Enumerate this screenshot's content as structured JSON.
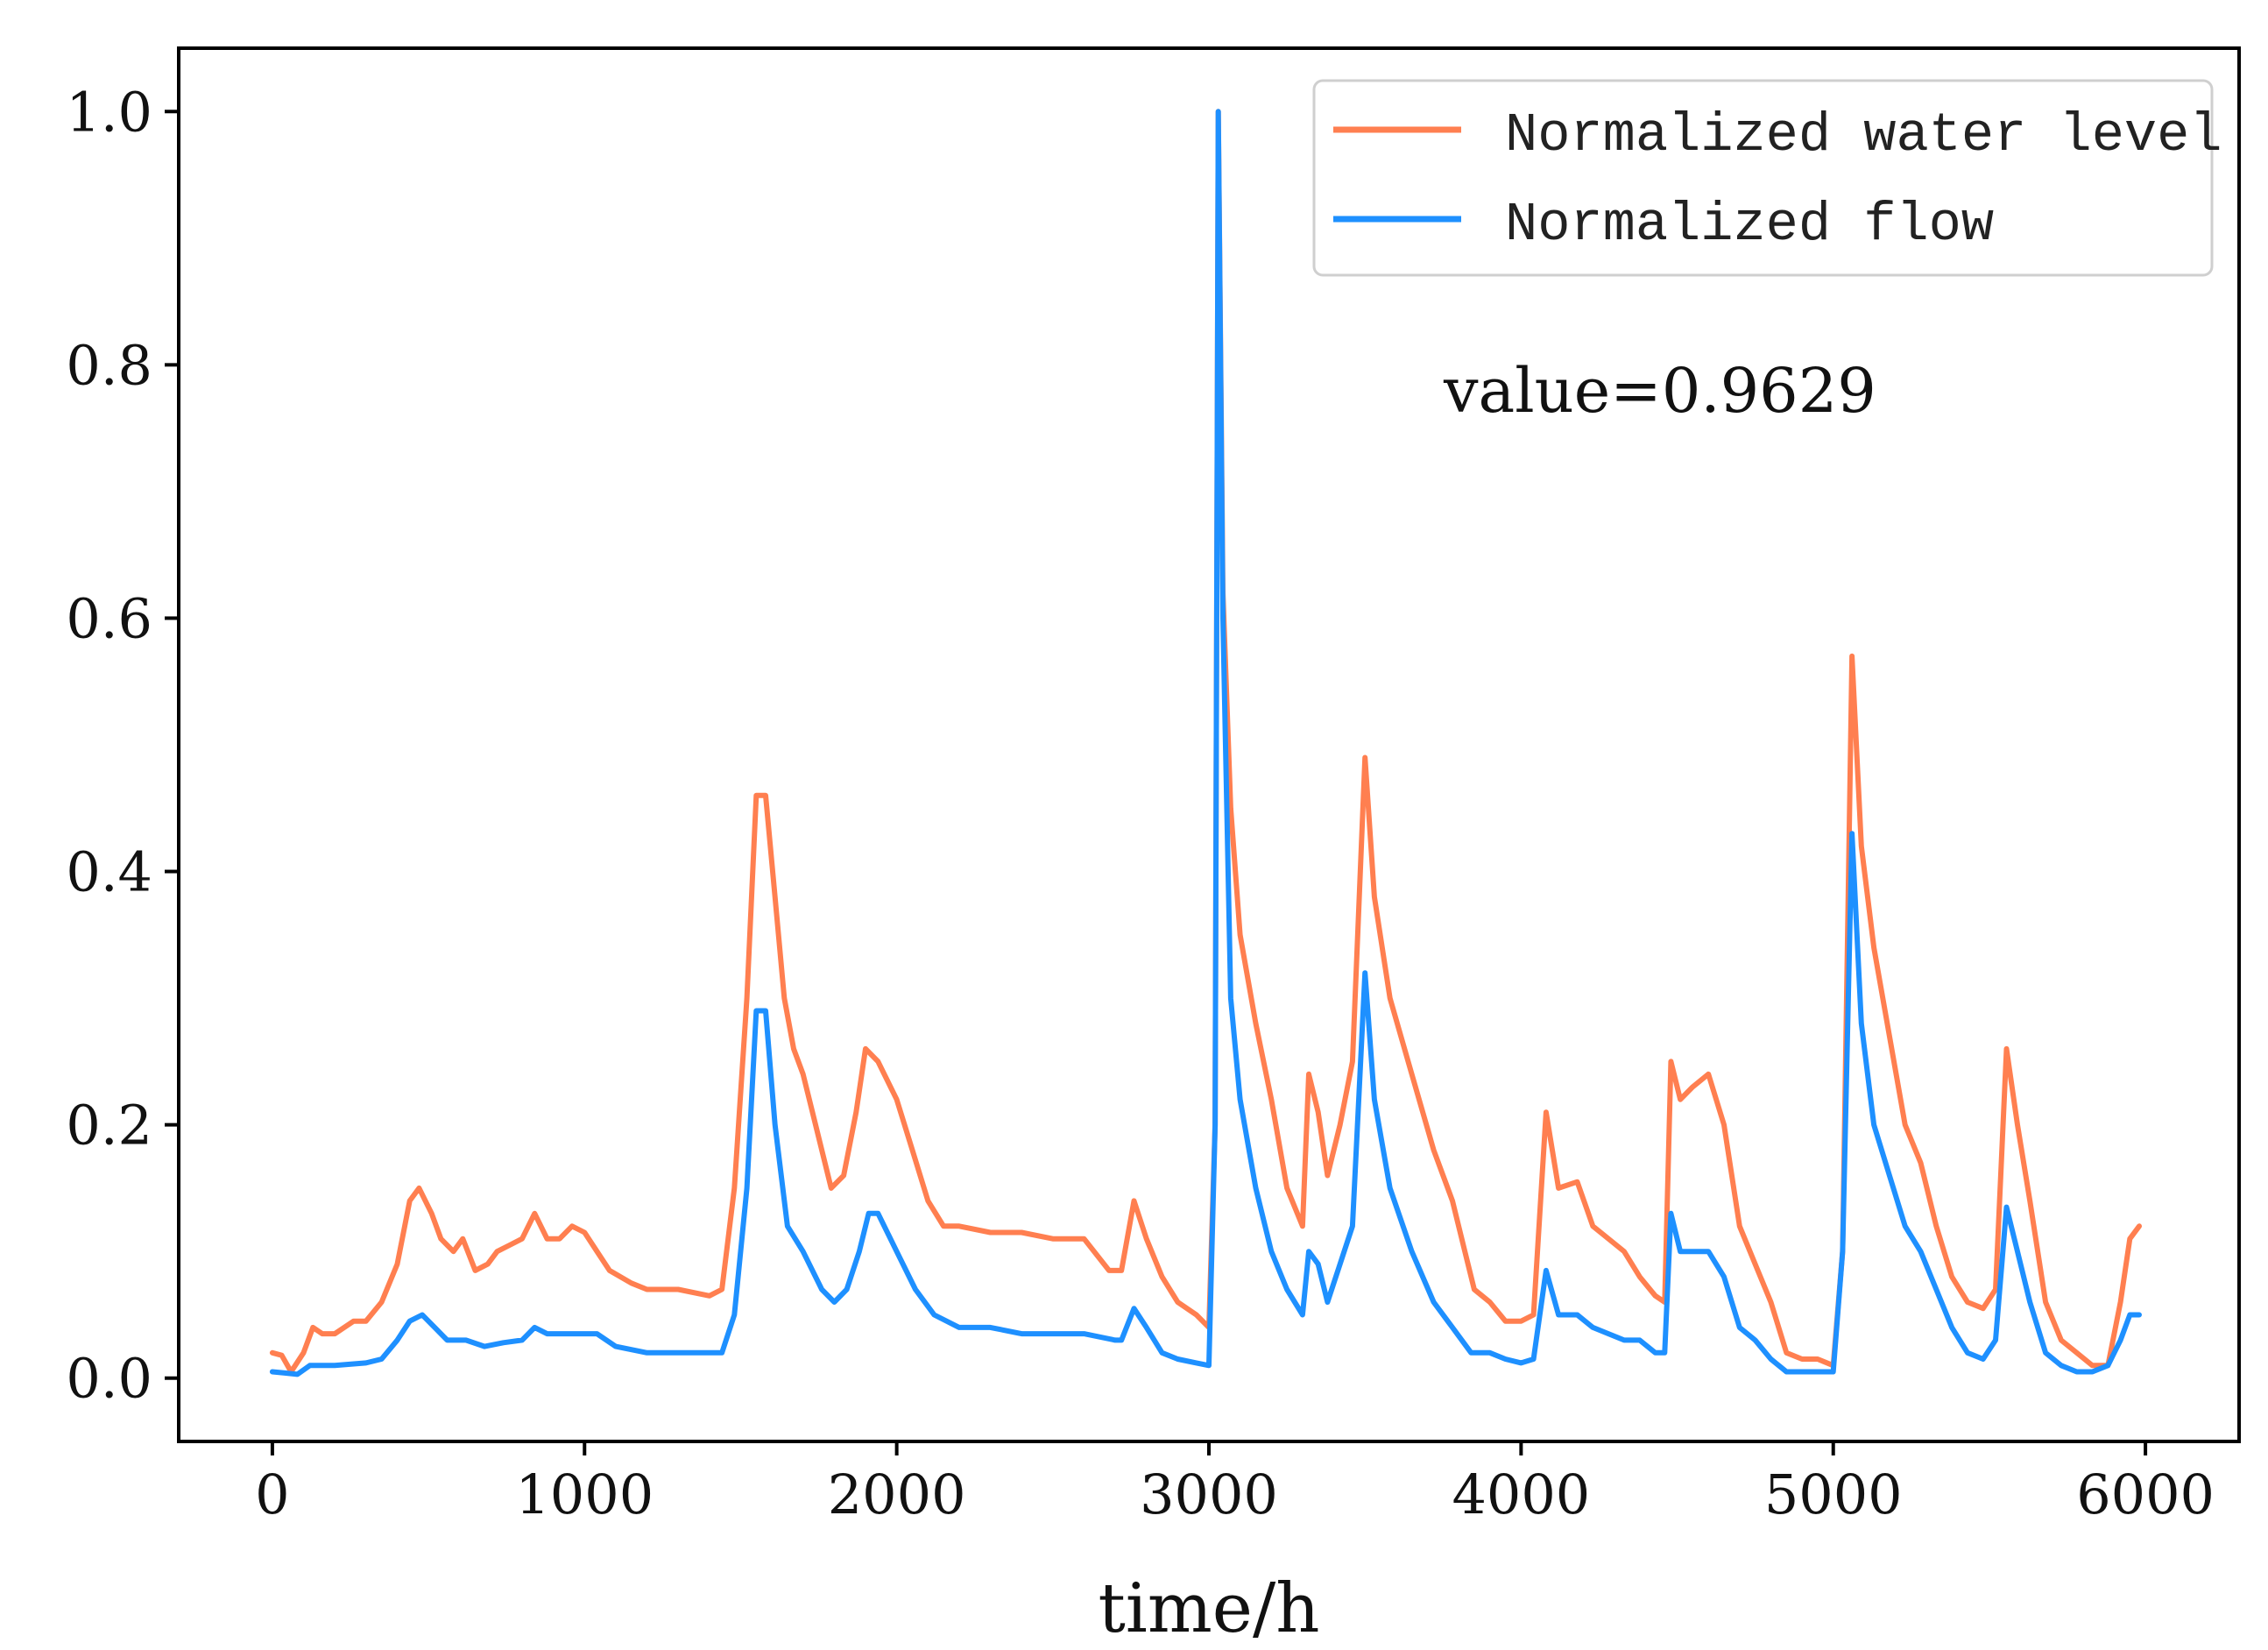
{
  "chart_data": {
    "type": "line",
    "title": "",
    "xlabel": "time/h",
    "ylabel": "",
    "xlim": [
      -300,
      6300
    ],
    "ylim": [
      -0.05,
      1.05
    ],
    "xticks": [
      0,
      1000,
      2000,
      3000,
      4000,
      5000,
      6000
    ],
    "xtick_labels": [
      "0",
      "1000",
      "2000",
      "3000",
      "4000",
      "5000",
      "6000"
    ],
    "yticks": [
      0.0,
      0.2,
      0.4,
      0.6,
      0.8,
      1.0
    ],
    "ytick_labels": [
      "0.0",
      "0.2",
      "0.4",
      "0.6",
      "0.8",
      "1.0"
    ],
    "grid": false,
    "legend_position": "top-right",
    "annotation": "value=0.9629",
    "series": [
      {
        "name": "Normalized water level",
        "color": "#ff7f50",
        "points": [
          [
            0,
            0.02
          ],
          [
            30,
            0.018
          ],
          [
            60,
            0.005
          ],
          [
            100,
            0.02
          ],
          [
            130,
            0.04
          ],
          [
            160,
            0.035
          ],
          [
            200,
            0.035
          ],
          [
            260,
            0.045
          ],
          [
            300,
            0.045
          ],
          [
            350,
            0.06
          ],
          [
            400,
            0.09
          ],
          [
            440,
            0.14
          ],
          [
            470,
            0.15
          ],
          [
            510,
            0.13
          ],
          [
            540,
            0.11
          ],
          [
            580,
            0.1
          ],
          [
            610,
            0.11
          ],
          [
            650,
            0.085
          ],
          [
            690,
            0.09
          ],
          [
            720,
            0.1
          ],
          [
            760,
            0.105
          ],
          [
            800,
            0.11
          ],
          [
            840,
            0.13
          ],
          [
            880,
            0.11
          ],
          [
            920,
            0.11
          ],
          [
            960,
            0.12
          ],
          [
            1000,
            0.115
          ],
          [
            1040,
            0.1
          ],
          [
            1080,
            0.085
          ],
          [
            1150,
            0.075
          ],
          [
            1200,
            0.07
          ],
          [
            1300,
            0.07
          ],
          [
            1400,
            0.065
          ],
          [
            1440,
            0.07
          ],
          [
            1480,
            0.15
          ],
          [
            1520,
            0.3
          ],
          [
            1550,
            0.46
          ],
          [
            1580,
            0.46
          ],
          [
            1610,
            0.38
          ],
          [
            1640,
            0.3
          ],
          [
            1670,
            0.26
          ],
          [
            1700,
            0.24
          ],
          [
            1740,
            0.2
          ],
          [
            1790,
            0.15
          ],
          [
            1830,
            0.16
          ],
          [
            1870,
            0.21
          ],
          [
            1900,
            0.26
          ],
          [
            1940,
            0.25
          ],
          [
            2000,
            0.22
          ],
          [
            2050,
            0.18
          ],
          [
            2100,
            0.14
          ],
          [
            2150,
            0.12
          ],
          [
            2200,
            0.12
          ],
          [
            2300,
            0.115
          ],
          [
            2400,
            0.115
          ],
          [
            2500,
            0.11
          ],
          [
            2600,
            0.11
          ],
          [
            2680,
            0.085
          ],
          [
            2720,
            0.085
          ],
          [
            2760,
            0.14
          ],
          [
            2800,
            0.11
          ],
          [
            2850,
            0.08
          ],
          [
            2900,
            0.06
          ],
          [
            2960,
            0.05
          ],
          [
            3000,
            0.04
          ],
          [
            3020,
            0.2
          ],
          [
            3030,
            1.0
          ],
          [
            3045,
            0.62
          ],
          [
            3070,
            0.45
          ],
          [
            3100,
            0.35
          ],
          [
            3150,
            0.28
          ],
          [
            3200,
            0.22
          ],
          [
            3250,
            0.15
          ],
          [
            3300,
            0.12
          ],
          [
            3320,
            0.24
          ],
          [
            3350,
            0.21
          ],
          [
            3380,
            0.16
          ],
          [
            3420,
            0.2
          ],
          [
            3460,
            0.25
          ],
          [
            3500,
            0.49
          ],
          [
            3530,
            0.38
          ],
          [
            3580,
            0.3
          ],
          [
            3650,
            0.24
          ],
          [
            3720,
            0.18
          ],
          [
            3780,
            0.14
          ],
          [
            3820,
            0.1
          ],
          [
            3850,
            0.07
          ],
          [
            3900,
            0.06
          ],
          [
            3950,
            0.045
          ],
          [
            4000,
            0.045
          ],
          [
            4040,
            0.05
          ],
          [
            4080,
            0.21
          ],
          [
            4120,
            0.15
          ],
          [
            4180,
            0.155
          ],
          [
            4230,
            0.12
          ],
          [
            4280,
            0.11
          ],
          [
            4330,
            0.1
          ],
          [
            4380,
            0.08
          ],
          [
            4430,
            0.065
          ],
          [
            4460,
            0.06
          ],
          [
            4480,
            0.25
          ],
          [
            4510,
            0.22
          ],
          [
            4550,
            0.23
          ],
          [
            4600,
            0.24
          ],
          [
            4650,
            0.2
          ],
          [
            4700,
            0.12
          ],
          [
            4750,
            0.09
          ],
          [
            4800,
            0.06
          ],
          [
            4850,
            0.02
          ],
          [
            4900,
            0.015
          ],
          [
            4950,
            0.015
          ],
          [
            5000,
            0.01
          ],
          [
            5030,
            0.1
          ],
          [
            5060,
            0.57
          ],
          [
            5090,
            0.42
          ],
          [
            5130,
            0.34
          ],
          [
            5180,
            0.27
          ],
          [
            5230,
            0.2
          ],
          [
            5280,
            0.17
          ],
          [
            5330,
            0.12
          ],
          [
            5380,
            0.08
          ],
          [
            5430,
            0.06
          ],
          [
            5480,
            0.055
          ],
          [
            5520,
            0.07
          ],
          [
            5555,
            0.26
          ],
          [
            5590,
            0.2
          ],
          [
            5630,
            0.14
          ],
          [
            5680,
            0.06
          ],
          [
            5730,
            0.03
          ],
          [
            5780,
            0.02
          ],
          [
            5830,
            0.01
          ],
          [
            5880,
            0.01
          ],
          [
            5920,
            0.06
          ],
          [
            5950,
            0.11
          ],
          [
            5980,
            0.12
          ]
        ]
      },
      {
        "name": "Normalized flow",
        "color": "#1e90ff",
        "points": [
          [
            0,
            0.005
          ],
          [
            40,
            0.004
          ],
          [
            80,
            0.003
          ],
          [
            120,
            0.01
          ],
          [
            200,
            0.01
          ],
          [
            300,
            0.012
          ],
          [
            350,
            0.015
          ],
          [
            400,
            0.03
          ],
          [
            440,
            0.045
          ],
          [
            480,
            0.05
          ],
          [
            520,
            0.04
          ],
          [
            560,
            0.03
          ],
          [
            620,
            0.03
          ],
          [
            680,
            0.025
          ],
          [
            740,
            0.028
          ],
          [
            800,
            0.03
          ],
          [
            840,
            0.04
          ],
          [
            880,
            0.035
          ],
          [
            960,
            0.035
          ],
          [
            1040,
            0.035
          ],
          [
            1100,
            0.025
          ],
          [
            1200,
            0.02
          ],
          [
            1300,
            0.02
          ],
          [
            1400,
            0.02
          ],
          [
            1440,
            0.02
          ],
          [
            1480,
            0.05
          ],
          [
            1520,
            0.15
          ],
          [
            1550,
            0.29
          ],
          [
            1580,
            0.29
          ],
          [
            1610,
            0.2
          ],
          [
            1650,
            0.12
          ],
          [
            1700,
            0.1
          ],
          [
            1760,
            0.07
          ],
          [
            1800,
            0.06
          ],
          [
            1840,
            0.07
          ],
          [
            1880,
            0.1
          ],
          [
            1910,
            0.13
          ],
          [
            1940,
            0.13
          ],
          [
            2000,
            0.1
          ],
          [
            2060,
            0.07
          ],
          [
            2120,
            0.05
          ],
          [
            2200,
            0.04
          ],
          [
            2300,
            0.04
          ],
          [
            2400,
            0.035
          ],
          [
            2500,
            0.035
          ],
          [
            2600,
            0.035
          ],
          [
            2700,
            0.03
          ],
          [
            2720,
            0.03
          ],
          [
            2760,
            0.055
          ],
          [
            2800,
            0.04
          ],
          [
            2850,
            0.02
          ],
          [
            2900,
            0.015
          ],
          [
            2960,
            0.012
          ],
          [
            3000,
            0.01
          ],
          [
            3020,
            0.2
          ],
          [
            3030,
            1.0
          ],
          [
            3045,
            0.6
          ],
          [
            3070,
            0.3
          ],
          [
            3100,
            0.22
          ],
          [
            3150,
            0.15
          ],
          [
            3200,
            0.1
          ],
          [
            3250,
            0.07
          ],
          [
            3300,
            0.05
          ],
          [
            3320,
            0.1
          ],
          [
            3350,
            0.09
          ],
          [
            3380,
            0.06
          ],
          [
            3420,
            0.09
          ],
          [
            3460,
            0.12
          ],
          [
            3500,
            0.32
          ],
          [
            3530,
            0.22
          ],
          [
            3580,
            0.15
          ],
          [
            3650,
            0.1
          ],
          [
            3720,
            0.06
          ],
          [
            3780,
            0.04
          ],
          [
            3840,
            0.02
          ],
          [
            3900,
            0.02
          ],
          [
            3950,
            0.015
          ],
          [
            4000,
            0.012
          ],
          [
            4040,
            0.015
          ],
          [
            4080,
            0.085
          ],
          [
            4120,
            0.05
          ],
          [
            4180,
            0.05
          ],
          [
            4230,
            0.04
          ],
          [
            4280,
            0.035
          ],
          [
            4330,
            0.03
          ],
          [
            4380,
            0.03
          ],
          [
            4430,
            0.02
          ],
          [
            4460,
            0.02
          ],
          [
            4480,
            0.13
          ],
          [
            4510,
            0.1
          ],
          [
            4550,
            0.1
          ],
          [
            4600,
            0.1
          ],
          [
            4650,
            0.08
          ],
          [
            4700,
            0.04
          ],
          [
            4750,
            0.03
          ],
          [
            4800,
            0.015
          ],
          [
            4850,
            0.005
          ],
          [
            4900,
            0.005
          ],
          [
            4950,
            0.005
          ],
          [
            5000,
            0.005
          ],
          [
            5030,
            0.1
          ],
          [
            5060,
            0.43
          ],
          [
            5090,
            0.28
          ],
          [
            5130,
            0.2
          ],
          [
            5180,
            0.16
          ],
          [
            5230,
            0.12
          ],
          [
            5280,
            0.1
          ],
          [
            5330,
            0.07
          ],
          [
            5380,
            0.04
          ],
          [
            5430,
            0.02
          ],
          [
            5480,
            0.015
          ],
          [
            5520,
            0.03
          ],
          [
            5555,
            0.135
          ],
          [
            5590,
            0.1
          ],
          [
            5630,
            0.06
          ],
          [
            5680,
            0.02
          ],
          [
            5730,
            0.01
          ],
          [
            5780,
            0.005
          ],
          [
            5830,
            0.005
          ],
          [
            5880,
            0.01
          ],
          [
            5920,
            0.03
          ],
          [
            5950,
            0.05
          ],
          [
            5980,
            0.05
          ]
        ]
      }
    ]
  }
}
